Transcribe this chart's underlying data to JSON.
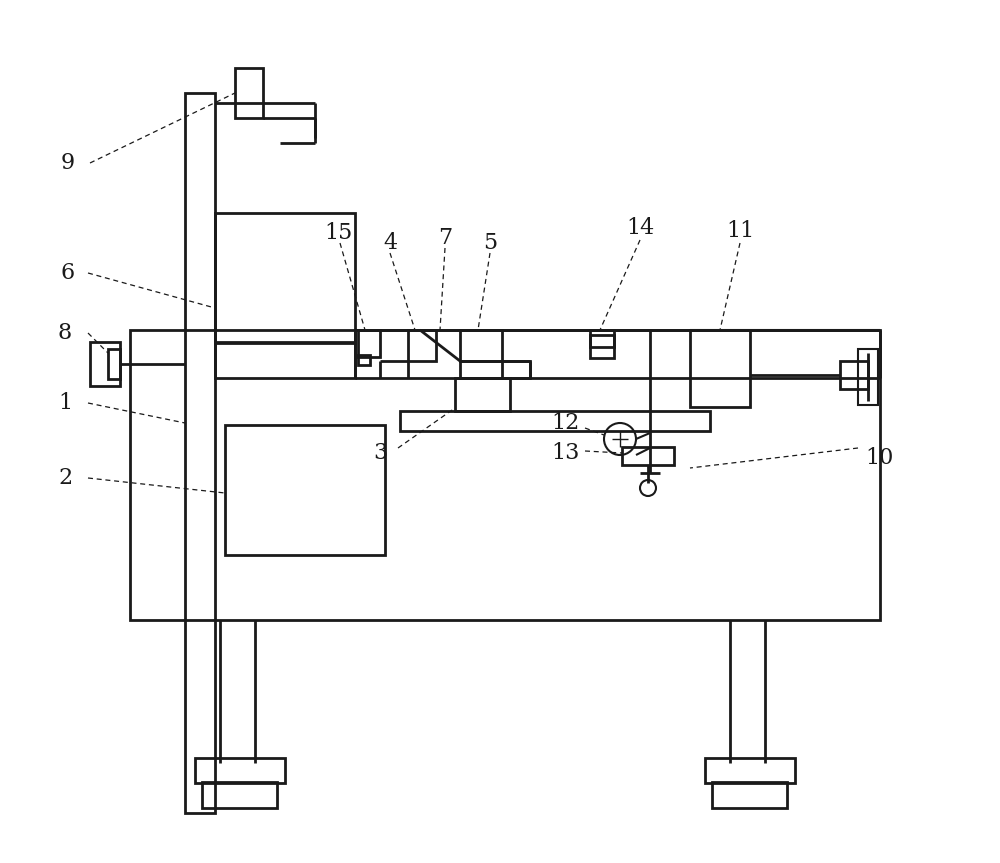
{
  "bg_color": "#ffffff",
  "line_color": "#1a1a1a",
  "lw": 1.5,
  "lw_thin": 1.0,
  "label_fontsize": 16
}
